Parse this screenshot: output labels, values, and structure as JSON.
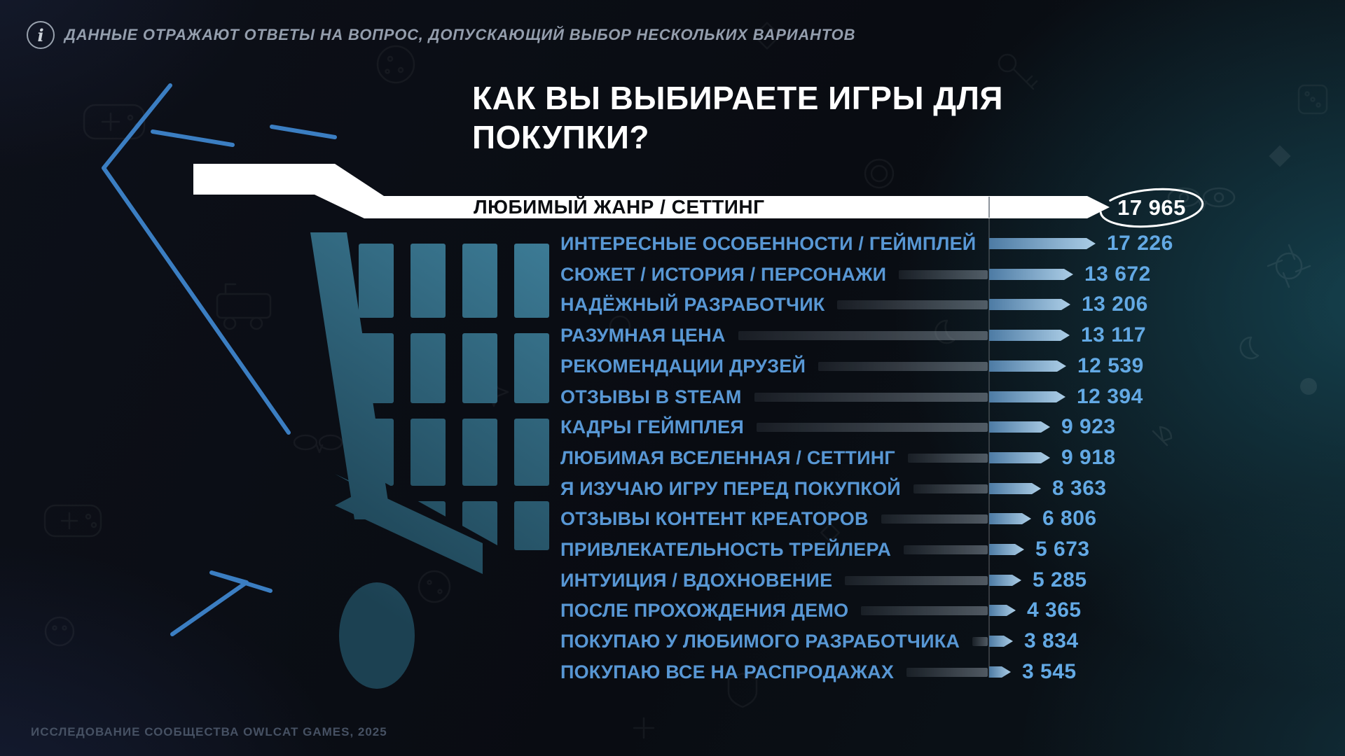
{
  "info_banner": {
    "icon": "info-icon",
    "text": "ДАННЫЕ ОТРАЖАЮТ ОТВЕТЫ НА ВОПРОС, ДОПУСКАЮЩИЙ ВЫБОР НЕСКОЛЬКИХ ВАРИАНТОВ"
  },
  "footer": {
    "source": "ИССЛЕДОВАНИЕ СООБЩЕСТВА OWLCAT GAMES, 2025"
  },
  "colors": {
    "background": "#0a0d13",
    "accent_teal": "#2e6075",
    "label_blue": "#5897d4",
    "value_blue": "#63a9e4",
    "bar_gradient": [
      "#4d7ba4",
      "#abcde6"
    ],
    "highlight_white": "#ffffff",
    "zigzag_blue": "#3b7ec2"
  },
  "chart_data": {
    "type": "bar",
    "orientation": "horizontal",
    "title": "КАК ВЫ ВЫБИРАЕТЕ ИГРЫ ДЛЯ ПОКУПКИ?",
    "note": "multiple answers allowed",
    "xlim": [
      0,
      17965
    ],
    "value_format": "space-thousands",
    "highlight": {
      "label": "ЛЮБИМЫЙ ЖАНР / СЕТТИНГ",
      "value": 17965,
      "display": "17 965",
      "style": "white-arrow-circled"
    },
    "bars": [
      {
        "label": "ИНТЕРЕСНЫЕ ОСОБЕННОСТИ / ГЕЙМПЛЕЙ",
        "value": 17226,
        "display": "17 226"
      },
      {
        "label": "СЮЖЕТ / ИСТОРИЯ / ПЕРСОНАЖИ",
        "value": 13672,
        "display": "13 672"
      },
      {
        "label": "НАДЁЖНЫЙ РАЗРАБОТЧИК",
        "value": 13206,
        "display": "13 206"
      },
      {
        "label": "РАЗУМНАЯ ЦЕНА",
        "value": 13117,
        "display": "13 117"
      },
      {
        "label": "РЕКОМЕНДАЦИИ ДРУЗЕЙ",
        "value": 12539,
        "display": "12 539"
      },
      {
        "label": "ОТЗЫВЫ В STEAM",
        "value": 12394,
        "display": "12 394"
      },
      {
        "label": "КАДРЫ ГЕЙМПЛЕЯ",
        "value": 9923,
        "display": "9 923"
      },
      {
        "label": "ЛЮБИМАЯ ВСЕЛЕННАЯ / СЕТТИНГ",
        "value": 9918,
        "display": "9 918"
      },
      {
        "label": "Я ИЗУЧАЮ ИГРУ ПЕРЕД ПОКУПКОЙ",
        "value": 8363,
        "display": "8 363"
      },
      {
        "label": "ОТЗЫВЫ КОНТЕНТ КРЕАТОРОВ",
        "value": 6806,
        "display": "6 806"
      },
      {
        "label": "ПРИВЛЕКАТЕЛЬНОСТЬ ТРЕЙЛЕРА",
        "value": 5673,
        "display": "5 673"
      },
      {
        "label": "ИНТУИЦИЯ / ВДОХНОВЕНИЕ",
        "value": 5285,
        "display": "5 285"
      },
      {
        "label": "ПОСЛЕ ПРОХОЖДЕНИЯ ДЕМО",
        "value": 4365,
        "display": "4 365"
      },
      {
        "label": "ПОКУПАЮ У ЛЮБИМОГО РАЗРАБОТЧИКА",
        "value": 3834,
        "display": "3 834"
      },
      {
        "label": "ПОКУПАЮ ВСЕ НА РАСПРОДАЖАХ",
        "value": 3545,
        "display": "3 545"
      }
    ]
  }
}
